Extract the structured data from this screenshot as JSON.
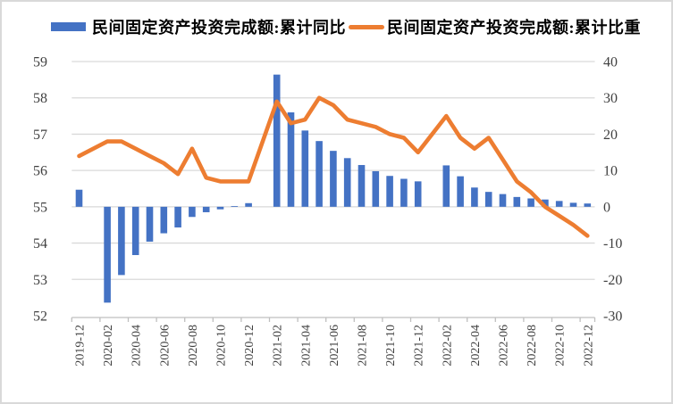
{
  "legend": {
    "items": [
      {
        "label": "民间固定资产投资完成额:累计同比",
        "marker": "bar",
        "color": "#4472C4"
      },
      {
        "label": "民间固定资产投资完成额:累计比重",
        "marker": "line",
        "color": "#ED7D31"
      }
    ]
  },
  "chart_data": {
    "type": "combo-bar-line",
    "title": "",
    "grid": "horizontal",
    "legend_position": "top",
    "categories": [
      "2019-12",
      "2020-02",
      "2020-03",
      "2020-04",
      "2020-05",
      "2020-06",
      "2020-07",
      "2020-08",
      "2020-09",
      "2020-10",
      "2020-11",
      "2020-12",
      "2021-02",
      "2021-03",
      "2021-04",
      "2021-05",
      "2021-06",
      "2021-07",
      "2021-08",
      "2021-09",
      "2021-10",
      "2021-11",
      "2021-12",
      "2022-02",
      "2022-03",
      "2022-04",
      "2022-05",
      "2022-06",
      "2022-07",
      "2022-08",
      "2022-09",
      "2022-10",
      "2022-11",
      "2022-12"
    ],
    "month_index": [
      0,
      2,
      3,
      4,
      5,
      6,
      7,
      8,
      9,
      10,
      11,
      12,
      14,
      15,
      16,
      17,
      18,
      19,
      20,
      21,
      22,
      23,
      24,
      26,
      27,
      28,
      29,
      30,
      31,
      32,
      33,
      34,
      35,
      36
    ],
    "series": [
      {
        "name": "民间固定资产投资完成额:累计同比",
        "type": "bar",
        "axis": "right",
        "color": "#4472C4",
        "values": [
          4.7,
          -26.4,
          -18.8,
          -13.3,
          -9.6,
          -7.3,
          -5.7,
          -2.8,
          -1.5,
          -0.7,
          0.2,
          1.0,
          36.4,
          26.0,
          21.0,
          18.1,
          15.4,
          13.4,
          11.5,
          9.8,
          8.5,
          7.7,
          7.0,
          11.4,
          8.4,
          5.3,
          4.1,
          3.5,
          2.7,
          2.3,
          2.0,
          1.6,
          1.1,
          0.9
        ]
      },
      {
        "name": "民间固定资产投资完成额:累计比重",
        "type": "line",
        "axis": "left",
        "color": "#ED7D31",
        "values": [
          56.4,
          56.8,
          56.8,
          56.6,
          56.4,
          56.2,
          55.9,
          56.6,
          55.8,
          55.7,
          55.7,
          55.7,
          57.9,
          57.3,
          57.4,
          58.0,
          57.8,
          57.4,
          57.3,
          57.2,
          57.0,
          56.9,
          56.5,
          57.5,
          56.9,
          56.6,
          56.9,
          56.3,
          55.7,
          55.4,
          55.0,
          54.75,
          54.5,
          54.2
        ]
      }
    ],
    "left_axis": {
      "min": 52,
      "max": 59,
      "ticks": [
        59,
        58,
        57,
        56,
        55,
        54,
        53,
        52
      ]
    },
    "right_axis": {
      "min": -30,
      "max": 40,
      "ticks": [
        40,
        30,
        20,
        10,
        0,
        -10,
        -20,
        -30
      ]
    },
    "x_tick_labels": [
      "2019-12",
      "2020-02",
      "2020-04",
      "2020-06",
      "2020-08",
      "2020-10",
      "2020-12",
      "2021-02",
      "2021-04",
      "2021-06",
      "2021-08",
      "2021-10",
      "2021-12",
      "2022-02",
      "2022-04",
      "2022-06",
      "2022-08",
      "2022-10",
      "2022-12"
    ],
    "colors": {
      "grid": "#D9D9D9",
      "axis_line": "#BFBFBF",
      "axis_text": "#404040"
    }
  }
}
